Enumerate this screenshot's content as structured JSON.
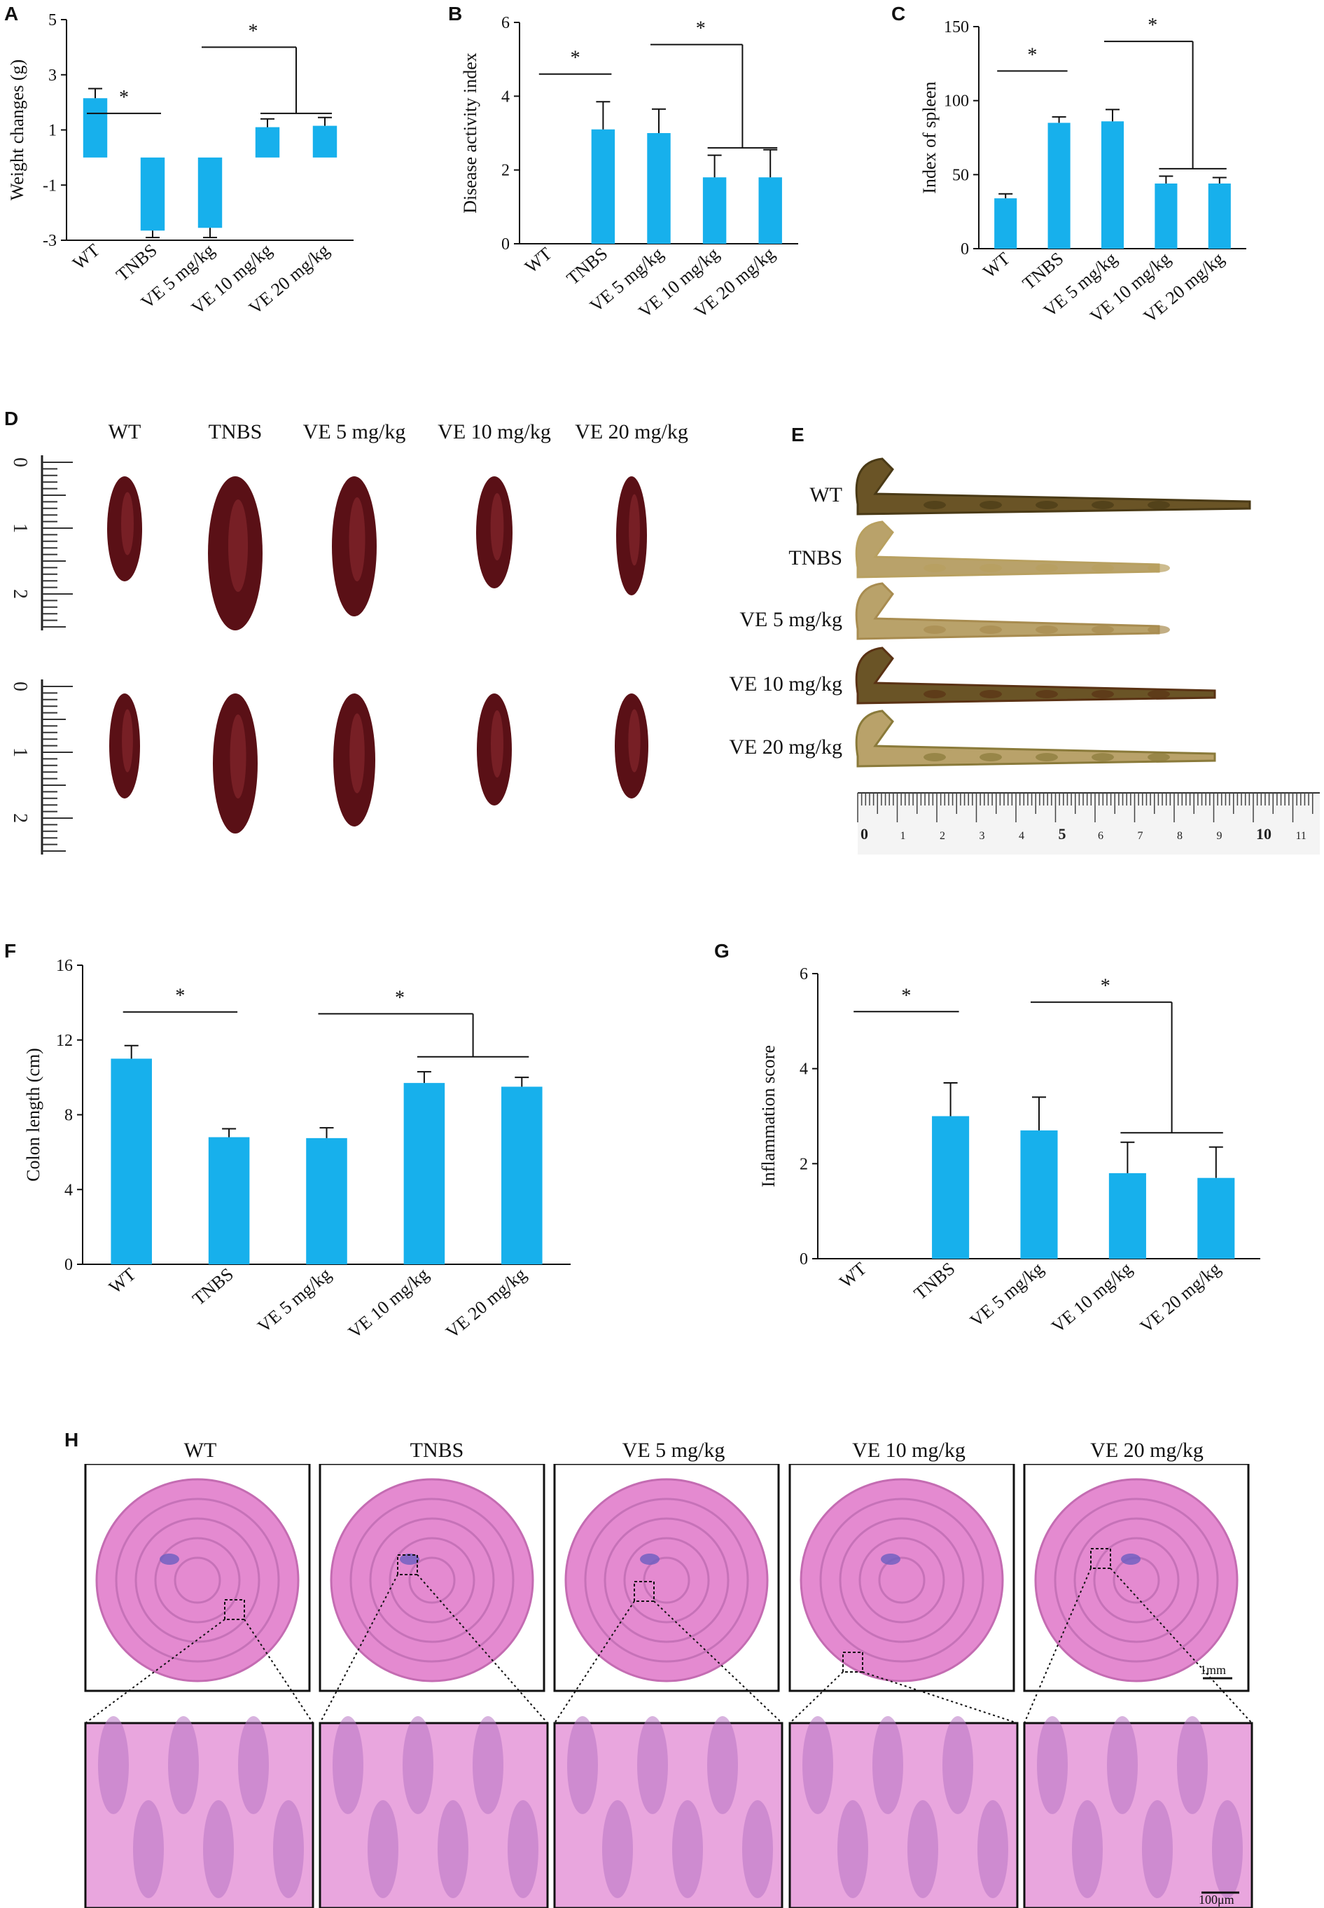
{
  "colors": {
    "bar": "#17b0ec",
    "axis": "#111111",
    "tissue": "#e48ad0",
    "tissue_dark": "#6a5ec0",
    "spleen": "#5a1016",
    "colon": "#b9a26a"
  },
  "panels": {
    "A": "A",
    "B": "B",
    "C": "C",
    "D": "D",
    "E": "E",
    "F": "F",
    "G": "G",
    "H": "H"
  },
  "groups": [
    "WT",
    "TNBS",
    "VE 5 mg/kg",
    "VE 10 mg/kg",
    "VE 20 mg/kg"
  ],
  "chart_data": [
    {
      "id": "A",
      "type": "bar",
      "categories": [
        "WT",
        "TNBS",
        "VE 5 mg/kg",
        "VE 10 mg/kg",
        "VE 20 mg/kg"
      ],
      "values": [
        2.15,
        -2.65,
        -2.55,
        1.1,
        1.15
      ],
      "errors": [
        0.35,
        0.25,
        0.35,
        0.3,
        0.3
      ],
      "ylabel": "Weight changes (g)",
      "ylim": [
        -3,
        5
      ],
      "yticks": [
        5,
        3,
        1,
        -1,
        -3
      ],
      "significance": "*"
    },
    {
      "id": "B",
      "type": "bar",
      "categories": [
        "WT",
        "TNBS",
        "VE 5 mg/kg",
        "VE 10 mg/kg",
        "VE 20 mg/kg"
      ],
      "values": [
        0,
        3.1,
        3.0,
        1.8,
        1.8
      ],
      "errors": [
        0,
        0.75,
        0.65,
        0.6,
        0.75
      ],
      "ylabel": "Disease activity index",
      "ylim": [
        0,
        6
      ],
      "yticks": [
        6,
        4,
        2,
        0
      ],
      "significance": "*"
    },
    {
      "id": "C",
      "type": "bar",
      "categories": [
        "WT",
        "TNBS",
        "VE 5 mg/kg",
        "VE 10 mg/kg",
        "VE 20 mg/kg"
      ],
      "values": [
        34,
        85,
        86,
        44,
        44
      ],
      "errors": [
        3,
        4,
        8,
        5,
        4
      ],
      "ylabel": "Index of spleen",
      "ylim": [
        0,
        150
      ],
      "yticks": [
        150,
        100,
        50,
        0
      ],
      "significance": "*"
    },
    {
      "id": "F",
      "type": "bar",
      "categories": [
        "WT",
        "TNBS",
        "VE 5 mg/kg",
        "VE 10 mg/kg",
        "VE 20 mg/kg"
      ],
      "values": [
        11.0,
        6.8,
        6.75,
        9.7,
        9.5
      ],
      "errors": [
        0.7,
        0.45,
        0.55,
        0.6,
        0.5
      ],
      "ylabel": "Colon length (cm)",
      "ylim": [
        0,
        16
      ],
      "yticks": [
        16,
        12,
        8,
        4,
        0
      ],
      "significance": "*"
    },
    {
      "id": "G",
      "type": "bar",
      "categories": [
        "WT",
        "TNBS",
        "VE 5 mg/kg",
        "VE 10 mg/kg",
        "VE 20 mg/kg"
      ],
      "values": [
        0,
        3.0,
        2.7,
        1.8,
        1.7
      ],
      "errors": [
        0,
        0.7,
        0.7,
        0.65,
        0.65
      ],
      "ylabel": "Inflammation score",
      "ylim": [
        0,
        6
      ],
      "yticks": [
        6,
        4,
        2,
        0
      ],
      "significance": "*"
    }
  ],
  "ruler_d": [
    "0",
    "1",
    "2"
  ],
  "ruler_e": [
    "0",
    "1",
    "2",
    "3",
    "4",
    "5",
    "6",
    "7",
    "8",
    "9",
    "10",
    "11"
  ],
  "scalebars": {
    "overview": "1mm",
    "zoom": "100μm"
  }
}
